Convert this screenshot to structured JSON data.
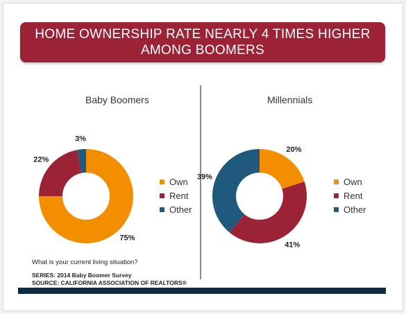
{
  "title": {
    "line1": "HOME OWNERSHIP RATE NEARLY 4 TIMES HIGHER",
    "line2": "AMONG BOOMERS"
  },
  "colors": {
    "own": "#f28e00",
    "rent": "#9b2335",
    "other": "#1f5a7e",
    "banner": "#9b2335",
    "footer": "#0c2d45"
  },
  "chart_data": [
    {
      "type": "pie",
      "title": "Baby Boomers",
      "categories": [
        "Own",
        "Rent",
        "Other"
      ],
      "values": [
        75,
        22,
        3
      ],
      "labels": [
        "75%",
        "22%",
        "3%"
      ],
      "donut": true,
      "legend": "right"
    },
    {
      "type": "pie",
      "title": "Millennials",
      "categories": [
        "Own",
        "Rent",
        "Other"
      ],
      "values": [
        20,
        41,
        39
      ],
      "labels": [
        "20%",
        "41%",
        "39%"
      ],
      "donut": true,
      "legend": "right"
    }
  ],
  "question": "What is your current living situation?",
  "series_note": "SERIES: 2014 Baby Boomer Survey",
  "source_note": "SOURCE: CALIFORNIA ASSOCIATION OF REALTORS®"
}
